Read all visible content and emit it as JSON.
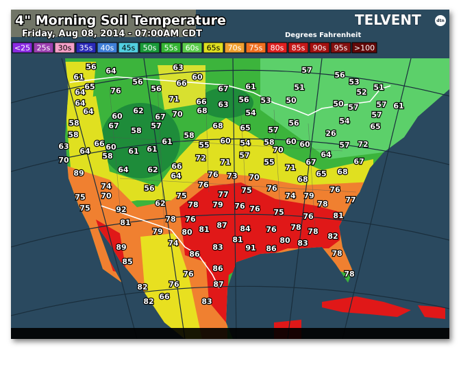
{
  "header": {
    "title": "4\" Morning Soil Temperature",
    "subtitle": "Friday, Aug 08, 2014 - 07:00AM CDT",
    "units": "Degrees Fahrenheit",
    "brand": "TELVENT",
    "brand_badge": "dtn"
  },
  "legend": [
    {
      "label": "<25",
      "color": "#8a2be2"
    },
    {
      "label": "25s",
      "color": "#9b3fb0"
    },
    {
      "label": "30s",
      "color": "#f5a0c8"
    },
    {
      "label": "35s",
      "color": "#2a2ab8"
    },
    {
      "label": "40s",
      "color": "#3f7fd8"
    },
    {
      "label": "45s",
      "color": "#52cfe0"
    },
    {
      "label": "50s",
      "color": "#1a9a3a"
    },
    {
      "label": "55s",
      "color": "#34b434"
    },
    {
      "label": "60s",
      "color": "#5ccc4c"
    },
    {
      "label": "65s",
      "color": "#e0e020"
    },
    {
      "label": "70s",
      "color": "#f0a030"
    },
    {
      "label": "75s",
      "color": "#f07020"
    },
    {
      "label": "80s",
      "color": "#e02020"
    },
    {
      "label": "85s",
      "color": "#c41818"
    },
    {
      "label": "90s",
      "color": "#a41010"
    },
    {
      "label": "95s",
      "color": "#841010"
    },
    {
      "label": ">100",
      "color": "#620808"
    }
  ],
  "readings": [
    56,
    64,
    63,
    57,
    56,
    53,
    51,
    52,
    51,
    61,
    65,
    76,
    56,
    56,
    66,
    60,
    67,
    61,
    64,
    64,
    64,
    71,
    66,
    63,
    56,
    53,
    50,
    50,
    57,
    57,
    61,
    58,
    60,
    62,
    67,
    70,
    68,
    54,
    57,
    58,
    67,
    58,
    57,
    58,
    68,
    65,
    57,
    56,
    54,
    65,
    63,
    64,
    66,
    60,
    61,
    61,
    61,
    55,
    60,
    54,
    58,
    70,
    60,
    60,
    26,
    57,
    72,
    70,
    58,
    62,
    66,
    72,
    71,
    57,
    55,
    71,
    67,
    64,
    67,
    89,
    64,
    64,
    76,
    73,
    70,
    68,
    65,
    68,
    74,
    56,
    76,
    75,
    76,
    76,
    75,
    70,
    75,
    77,
    74,
    79,
    77,
    75,
    92,
    62,
    78,
    79,
    76,
    76,
    78,
    81,
    78,
    76,
    75,
    76,
    81,
    79,
    80,
    81,
    87,
    84,
    76,
    78,
    78,
    89,
    74,
    83,
    81,
    91,
    86,
    80,
    83,
    82,
    86,
    78,
    85,
    86,
    76,
    78,
    82,
    76,
    87,
    82,
    66,
    83
  ]
}
